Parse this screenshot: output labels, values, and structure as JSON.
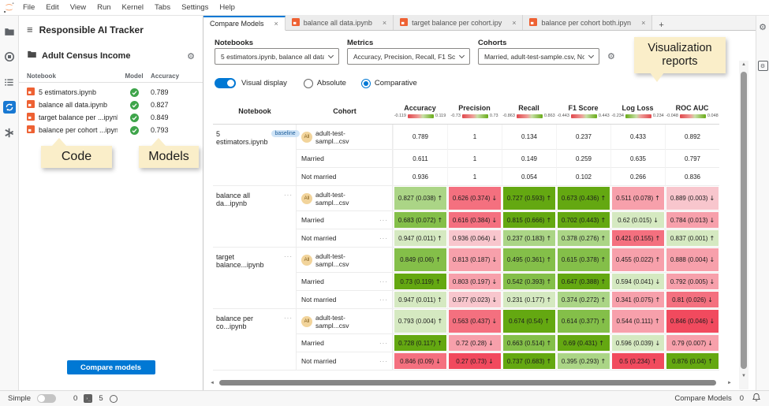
{
  "menu_bar": {
    "items": [
      "File",
      "Edit",
      "View",
      "Run",
      "Kernel",
      "Tabs",
      "Settings",
      "Help"
    ]
  },
  "sidebar": {
    "title": "Responsible AI Tracker",
    "project": "Adult Census Income",
    "table": {
      "headers": [
        "Notebook",
        "Model",
        "Accuracy"
      ],
      "rows": [
        {
          "name": "5 estimators.ipynb",
          "accuracy": "0.789"
        },
        {
          "name": "balance all data.ipynb",
          "accuracy": "0.827"
        },
        {
          "name": "target balance per ...ipynb",
          "accuracy": "0.849"
        },
        {
          "name": "balance per cohort ...ipynb",
          "accuracy": "0.793"
        }
      ]
    },
    "compare_button": "Compare models"
  },
  "callouts": {
    "code": "Code",
    "models": "Models",
    "viz": "Visualization reports"
  },
  "tab_bar": {
    "tabs": [
      {
        "label": "Compare Models",
        "active": true,
        "notebook_icon": false
      },
      {
        "label": "balance all data.ipynb",
        "active": false,
        "notebook_icon": true
      },
      {
        "label": "target balance per cohort.ipy",
        "active": false,
        "notebook_icon": true
      },
      {
        "label": "balance per cohort both.ipyn",
        "active": false,
        "notebook_icon": true
      }
    ],
    "new_tab": "+"
  },
  "controls": {
    "notebooks_label": "Notebooks",
    "notebooks_value": "5 estimators.ipynb, balance all data....",
    "metrics_label": "Metrics",
    "metrics_value": "Accuracy, Precision, Recall, F1 Score...",
    "cohorts_label": "Cohorts",
    "cohorts_value": "Married, adult-test-sample.csv, Not ...",
    "visual_display_label": "Visual display",
    "absolute_label": "Absolute",
    "comparative_label": "Comparative"
  },
  "compare_table": {
    "columns": {
      "notebook": "Notebook",
      "cohort": "Cohort"
    },
    "metric_headers": [
      {
        "label": "Accuracy",
        "min": "-0.119",
        "max": "0.119",
        "reverse": false
      },
      {
        "label": "Precision",
        "min": "-0.73",
        "max": "0.73",
        "reverse": false
      },
      {
        "label": "Recall",
        "min": "-0.863",
        "max": "0.863",
        "reverse": false
      },
      {
        "label": "F1 Score",
        "min": "-0.443",
        "max": "0.443",
        "reverse": false
      },
      {
        "label": "Log Loss",
        "min": "-0.234",
        "max": "0.234",
        "reverse": true
      },
      {
        "label": "ROC AUC",
        "min": "-0.048",
        "max": "0.048",
        "reverse": false
      }
    ],
    "groups": [
      {
        "notebook": "5 estimators.ipynb",
        "badge": "baseline",
        "menu": false,
        "rows": [
          {
            "cohort_lines": [
              "adult-test-",
              "sampl...csv"
            ],
            "all": true,
            "menu": false,
            "cells": [
              {
                "v": "0.789"
              },
              {
                "v": "1"
              },
              {
                "v": "0.134"
              },
              {
                "v": "0.237"
              },
              {
                "v": "0.433"
              },
              {
                "v": "0.892"
              }
            ]
          },
          {
            "cohort_lines": [
              "Married"
            ],
            "all": false,
            "menu": false,
            "cells": [
              {
                "v": "0.611"
              },
              {
                "v": "1"
              },
              {
                "v": "0.149"
              },
              {
                "v": "0.259"
              },
              {
                "v": "0.635"
              },
              {
                "v": "0.797"
              }
            ]
          },
          {
            "cohort_lines": [
              "Not married"
            ],
            "all": false,
            "menu": false,
            "cells": [
              {
                "v": "0.936"
              },
              {
                "v": "1"
              },
              {
                "v": "0.054"
              },
              {
                "v": "0.102"
              },
              {
                "v": "0.266"
              },
              {
                "v": "0.836"
              }
            ]
          }
        ]
      },
      {
        "notebook": "balance all da...ipynb",
        "badge": "",
        "menu": true,
        "rows": [
          {
            "cohort_lines": [
              "adult-test-",
              "sampl...csv"
            ],
            "all": true,
            "menu": false,
            "cells": [
              {
                "v": "0.827 (0.038)",
                "a": "↑",
                "t": "g2"
              },
              {
                "v": "0.626 (0.374)",
                "a": "↓",
                "t": "r3"
              },
              {
                "v": "0.727 (0.593)",
                "a": "↑",
                "t": "g4"
              },
              {
                "v": "0.673 (0.436)",
                "a": "↑",
                "t": "g4"
              },
              {
                "v": "0.511 (0.078)",
                "a": "↑",
                "t": "r2"
              },
              {
                "v": "0.889 (0.003)",
                "a": "↓",
                "t": "r1"
              }
            ]
          },
          {
            "cohort_lines": [
              "Married"
            ],
            "all": false,
            "menu": true,
            "cells": [
              {
                "v": "0.683 (0.072)",
                "a": "↑",
                "t": "g3"
              },
              {
                "v": "0.616 (0.384)",
                "a": "↓",
                "t": "r3"
              },
              {
                "v": "0.815 (0.666)",
                "a": "↑",
                "t": "g4"
              },
              {
                "v": "0.702 (0.443)",
                "a": "↑",
                "t": "g4"
              },
              {
                "v": "0.62 (0.015)",
                "a": "↓",
                "t": "g1"
              },
              {
                "v": "0.784 (0.013)",
                "a": "↓",
                "t": "r2"
              }
            ]
          },
          {
            "cohort_lines": [
              "Not married"
            ],
            "all": false,
            "menu": true,
            "cells": [
              {
                "v": "0.947 (0.011)",
                "a": "↑",
                "t": "g1"
              },
              {
                "v": "0.936 (0.064)",
                "a": "↓",
                "t": "r1"
              },
              {
                "v": "0.237 (0.183)",
                "a": "↑",
                "t": "g2"
              },
              {
                "v": "0.378 (0.276)",
                "a": "↑",
                "t": "g2"
              },
              {
                "v": "0.421 (0.155)",
                "a": "↑",
                "t": "r3"
              },
              {
                "v": "0.837 (0.001)",
                "a": "↑",
                "t": "g1"
              }
            ]
          }
        ]
      },
      {
        "notebook": "target balance...ipynb",
        "badge": "",
        "menu": true,
        "rows": [
          {
            "cohort_lines": [
              "adult-test-",
              "sampl...csv"
            ],
            "all": true,
            "menu": false,
            "cells": [
              {
                "v": "0.849 (0.06)",
                "a": "↑",
                "t": "g3"
              },
              {
                "v": "0.813 (0.187)",
                "a": "↓",
                "t": "r2"
              },
              {
                "v": "0.495 (0.361)",
                "a": "↑",
                "t": "g3"
              },
              {
                "v": "0.615 (0.378)",
                "a": "↑",
                "t": "g3"
              },
              {
                "v": "0.455 (0.022)",
                "a": "↑",
                "t": "r2"
              },
              {
                "v": "0.888 (0.004)",
                "a": "↓",
                "t": "r2"
              }
            ]
          },
          {
            "cohort_lines": [
              "Married"
            ],
            "all": false,
            "menu": true,
            "cells": [
              {
                "v": "0.73 (0.119)",
                "a": "↑",
                "t": "g4"
              },
              {
                "v": "0.803 (0.197)",
                "a": "↓",
                "t": "r2"
              },
              {
                "v": "0.542 (0.393)",
                "a": "↑",
                "t": "g3"
              },
              {
                "v": "0.647 (0.388)",
                "a": "↑",
                "t": "g4"
              },
              {
                "v": "0.594 (0.041)",
                "a": "↓",
                "t": "g1"
              },
              {
                "v": "0.792 (0.005)",
                "a": "↓",
                "t": "r2"
              }
            ]
          },
          {
            "cohort_lines": [
              "Not married"
            ],
            "all": false,
            "menu": true,
            "cells": [
              {
                "v": "0.947 (0.011)",
                "a": "↑",
                "t": "g1"
              },
              {
                "v": "0.977 (0.023)",
                "a": "↓",
                "t": "r1"
              },
              {
                "v": "0.231 (0.177)",
                "a": "↑",
                "t": "g1"
              },
              {
                "v": "0.374 (0.272)",
                "a": "↑",
                "t": "g2"
              },
              {
                "v": "0.341 (0.075)",
                "a": "↑",
                "t": "r2"
              },
              {
                "v": "0.81 (0.026)",
                "a": "↓",
                "t": "r3"
              }
            ]
          }
        ]
      },
      {
        "notebook": "balance per co...ipynb",
        "badge": "",
        "menu": true,
        "rows": [
          {
            "cohort_lines": [
              "adult-test-",
              "sampl...csv"
            ],
            "all": true,
            "menu": false,
            "cells": [
              {
                "v": "0.793 (0.004)",
                "a": "↑",
                "t": "g1"
              },
              {
                "v": "0.563 (0.437)",
                "a": "↓",
                "t": "r3"
              },
              {
                "v": "0.674 (0.54)",
                "a": "↑",
                "t": "g4"
              },
              {
                "v": "0.614 (0.377)",
                "a": "↑",
                "t": "g3"
              },
              {
                "v": "0.544 (0.111)",
                "a": "↑",
                "t": "r2"
              },
              {
                "v": "0.846 (0.046)",
                "a": "↓",
                "t": "r4"
              }
            ]
          },
          {
            "cohort_lines": [
              "Married"
            ],
            "all": false,
            "menu": true,
            "cells": [
              {
                "v": "0.728 (0.117)",
                "a": "↑",
                "t": "g4"
              },
              {
                "v": "0.72 (0.28)",
                "a": "↓",
                "t": "r2"
              },
              {
                "v": "0.663 (0.514)",
                "a": "↑",
                "t": "g3"
              },
              {
                "v": "0.69 (0.431)",
                "a": "↑",
                "t": "g4"
              },
              {
                "v": "0.596 (0.039)",
                "a": "↓",
                "t": "g1"
              },
              {
                "v": "0.79 (0.007)",
                "a": "↓",
                "t": "r2"
              }
            ]
          },
          {
            "cohort_lines": [
              "Not married"
            ],
            "all": false,
            "menu": true,
            "cells": [
              {
                "v": "0.846 (0.09)",
                "a": "↓",
                "t": "r3"
              },
              {
                "v": "0.27 (0.73)",
                "a": "↓",
                "t": "r4"
              },
              {
                "v": "0.737 (0.683)",
                "a": "↑",
                "t": "g4"
              },
              {
                "v": "0.395 (0.293)",
                "a": "↑",
                "t": "g2"
              },
              {
                "v": "0.5 (0.234)",
                "a": "↑",
                "t": "r4"
              },
              {
                "v": "0.876 (0.04)",
                "a": "↑",
                "t": "g4"
              }
            ]
          }
        ]
      }
    ]
  },
  "status_bar": {
    "simple_label": "Simple",
    "terminals_count": "0",
    "kernels_count": "5",
    "right_label": "Compare Models",
    "right_count": "0"
  },
  "icons": {
    "close": "×",
    "ellipsis": "···",
    "all_badge": "All",
    "gear": "⚙",
    "hamburger": "≡",
    "arrow_up": "▲",
    "arrow_down": "▼",
    "arrow_left": "◄",
    "arrow_right": "►"
  },
  "colors": {
    "accent": "#0078d4",
    "notebook_icon": "#ee6133",
    "check_green": "#3ea44a",
    "callout_bg": "#faeec9",
    "tone_g1": "#d5e9c1",
    "tone_g2": "#abd586",
    "tone_g3": "#84bf49",
    "tone_g4": "#64a811",
    "tone_r1": "#f8c6cd",
    "tone_r2": "#f7a0ab",
    "tone_r3": "#f4707f",
    "tone_r4": "#f14a5e"
  }
}
